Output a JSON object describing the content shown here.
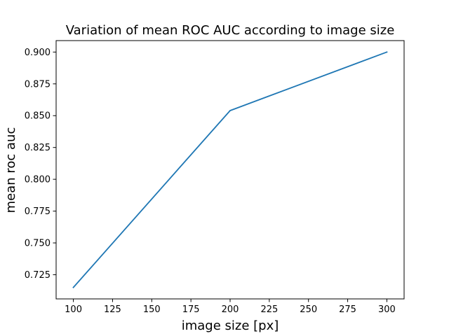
{
  "chart_data": {
    "type": "line",
    "title": "Variation of mean ROC AUC according to image size",
    "xlabel": "image size [px]",
    "ylabel": "mean roc auc",
    "xlim": [
      89,
      311
    ],
    "ylim": [
      0.706,
      0.909
    ],
    "grid": false,
    "legend": "none",
    "x_ticks": [
      100,
      125,
      150,
      175,
      200,
      225,
      250,
      275,
      300
    ],
    "y_ticks": [
      0.725,
      0.75,
      0.775,
      0.8,
      0.825,
      0.85,
      0.875,
      0.9
    ],
    "x_tick_labels": [
      "100",
      "125",
      "150",
      "175",
      "200",
      "225",
      "250",
      "275",
      "300"
    ],
    "y_tick_labels": [
      "0.725",
      "0.750",
      "0.775",
      "0.800",
      "0.825",
      "0.850",
      "0.875",
      "0.900"
    ],
    "series": [
      {
        "color": "#1f77b4",
        "x": [
          100,
          200,
          300
        ],
        "y": [
          0.715,
          0.854,
          0.9
        ]
      }
    ]
  }
}
